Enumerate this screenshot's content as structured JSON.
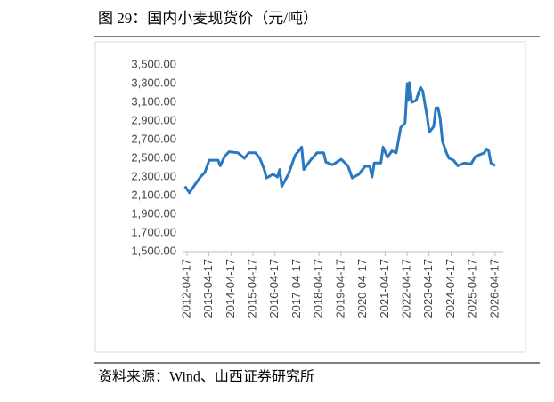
{
  "title": "图 29：国内小麦现货价（元/吨）",
  "source": "资料来源：Wind、山西证券研究所",
  "chart_data": {
    "type": "line",
    "x": [
      2012.2,
      2012.4,
      2012.6,
      2012.9,
      2013.1,
      2013.3,
      2013.7,
      2013.8,
      2014.0,
      2014.2,
      2014.6,
      2014.9,
      2015.1,
      2015.4,
      2015.6,
      2015.8,
      2015.9,
      2016.2,
      2016.4,
      2016.5,
      2016.6,
      2016.9,
      2017.2,
      2017.5,
      2017.6,
      2017.9,
      2018.2,
      2018.5,
      2018.6,
      2018.9,
      2019.3,
      2019.6,
      2019.8,
      2020.1,
      2020.4,
      2020.6,
      2020.7,
      2020.8,
      2021.1,
      2021.2,
      2021.4,
      2021.6,
      2021.8,
      2022.0,
      2022.2,
      2022.3,
      2022.35,
      2022.4,
      2022.5,
      2022.7,
      2022.9,
      2023.0,
      2023.2,
      2023.3,
      2023.5,
      2023.6,
      2023.7,
      2023.8,
      2023.9,
      2024.1,
      2024.2,
      2024.4,
      2024.6,
      2024.9,
      2025.2,
      2025.4,
      2025.8,
      2025.9,
      2026.0,
      2026.1,
      2026.3
    ],
    "series": [
      {
        "color": "#2a78c2",
        "values": [
          2200,
          2130,
          2200,
          2300,
          2350,
          2480,
          2480,
          2420,
          2520,
          2570,
          2560,
          2500,
          2560,
          2560,
          2500,
          2380,
          2290,
          2330,
          2300,
          2380,
          2200,
          2330,
          2530,
          2620,
          2380,
          2480,
          2560,
          2560,
          2460,
          2430,
          2490,
          2420,
          2290,
          2330,
          2420,
          2410,
          2300,
          2450,
          2450,
          2620,
          2510,
          2580,
          2560,
          2830,
          2880,
          3300,
          3120,
          3310,
          3100,
          3120,
          3260,
          3220,
          2950,
          2780,
          2840,
          3040,
          3040,
          2920,
          2680,
          2550,
          2500,
          2480,
          2420,
          2450,
          2440,
          2520,
          2560,
          2600,
          2580,
          2450,
          2420
        ]
      }
    ],
    "xlim": [
      2012.09,
      2026.66
    ],
    "xticks": [
      {
        "value": 2012.29,
        "label": "2012-04-17"
      },
      {
        "value": 2013.29,
        "label": "2013-04-17"
      },
      {
        "value": 2014.29,
        "label": "2014-04-17"
      },
      {
        "value": 2015.29,
        "label": "2015-04-17"
      },
      {
        "value": 2016.29,
        "label": "2016-04-17"
      },
      {
        "value": 2017.29,
        "label": "2017-04-17"
      },
      {
        "value": 2018.29,
        "label": "2018-04-17"
      },
      {
        "value": 2019.29,
        "label": "2019-04-17"
      },
      {
        "value": 2020.29,
        "label": "2020-04-17"
      },
      {
        "value": 2021.29,
        "label": "2021-04-17"
      },
      {
        "value": 2022.29,
        "label": "2022-04-17"
      },
      {
        "value": 2023.29,
        "label": "2023-04-17"
      },
      {
        "value": 2024.29,
        "label": "2024-04-17"
      },
      {
        "value": 2025.29,
        "label": "2025-04-17"
      },
      {
        "value": 2026.29,
        "label": "2026-04-17"
      }
    ],
    "ylim": [
      1500,
      3500
    ],
    "yticks": [
      {
        "value": 1500,
        "label": "1,500.00"
      },
      {
        "value": 1700,
        "label": "1,700.00"
      },
      {
        "value": 1900,
        "label": "1,900.00"
      },
      {
        "value": 2100,
        "label": "2,100.00"
      },
      {
        "value": 2300,
        "label": "2,300.00"
      },
      {
        "value": 2500,
        "label": "2,500.00"
      },
      {
        "value": 2700,
        "label": "2,700.00"
      },
      {
        "value": 2900,
        "label": "2,900.00"
      },
      {
        "value": 3100,
        "label": "3,100.00"
      },
      {
        "value": 3300,
        "label": "3,300.00"
      },
      {
        "value": 3500,
        "label": "3,500.00"
      }
    ],
    "grid": false
  }
}
